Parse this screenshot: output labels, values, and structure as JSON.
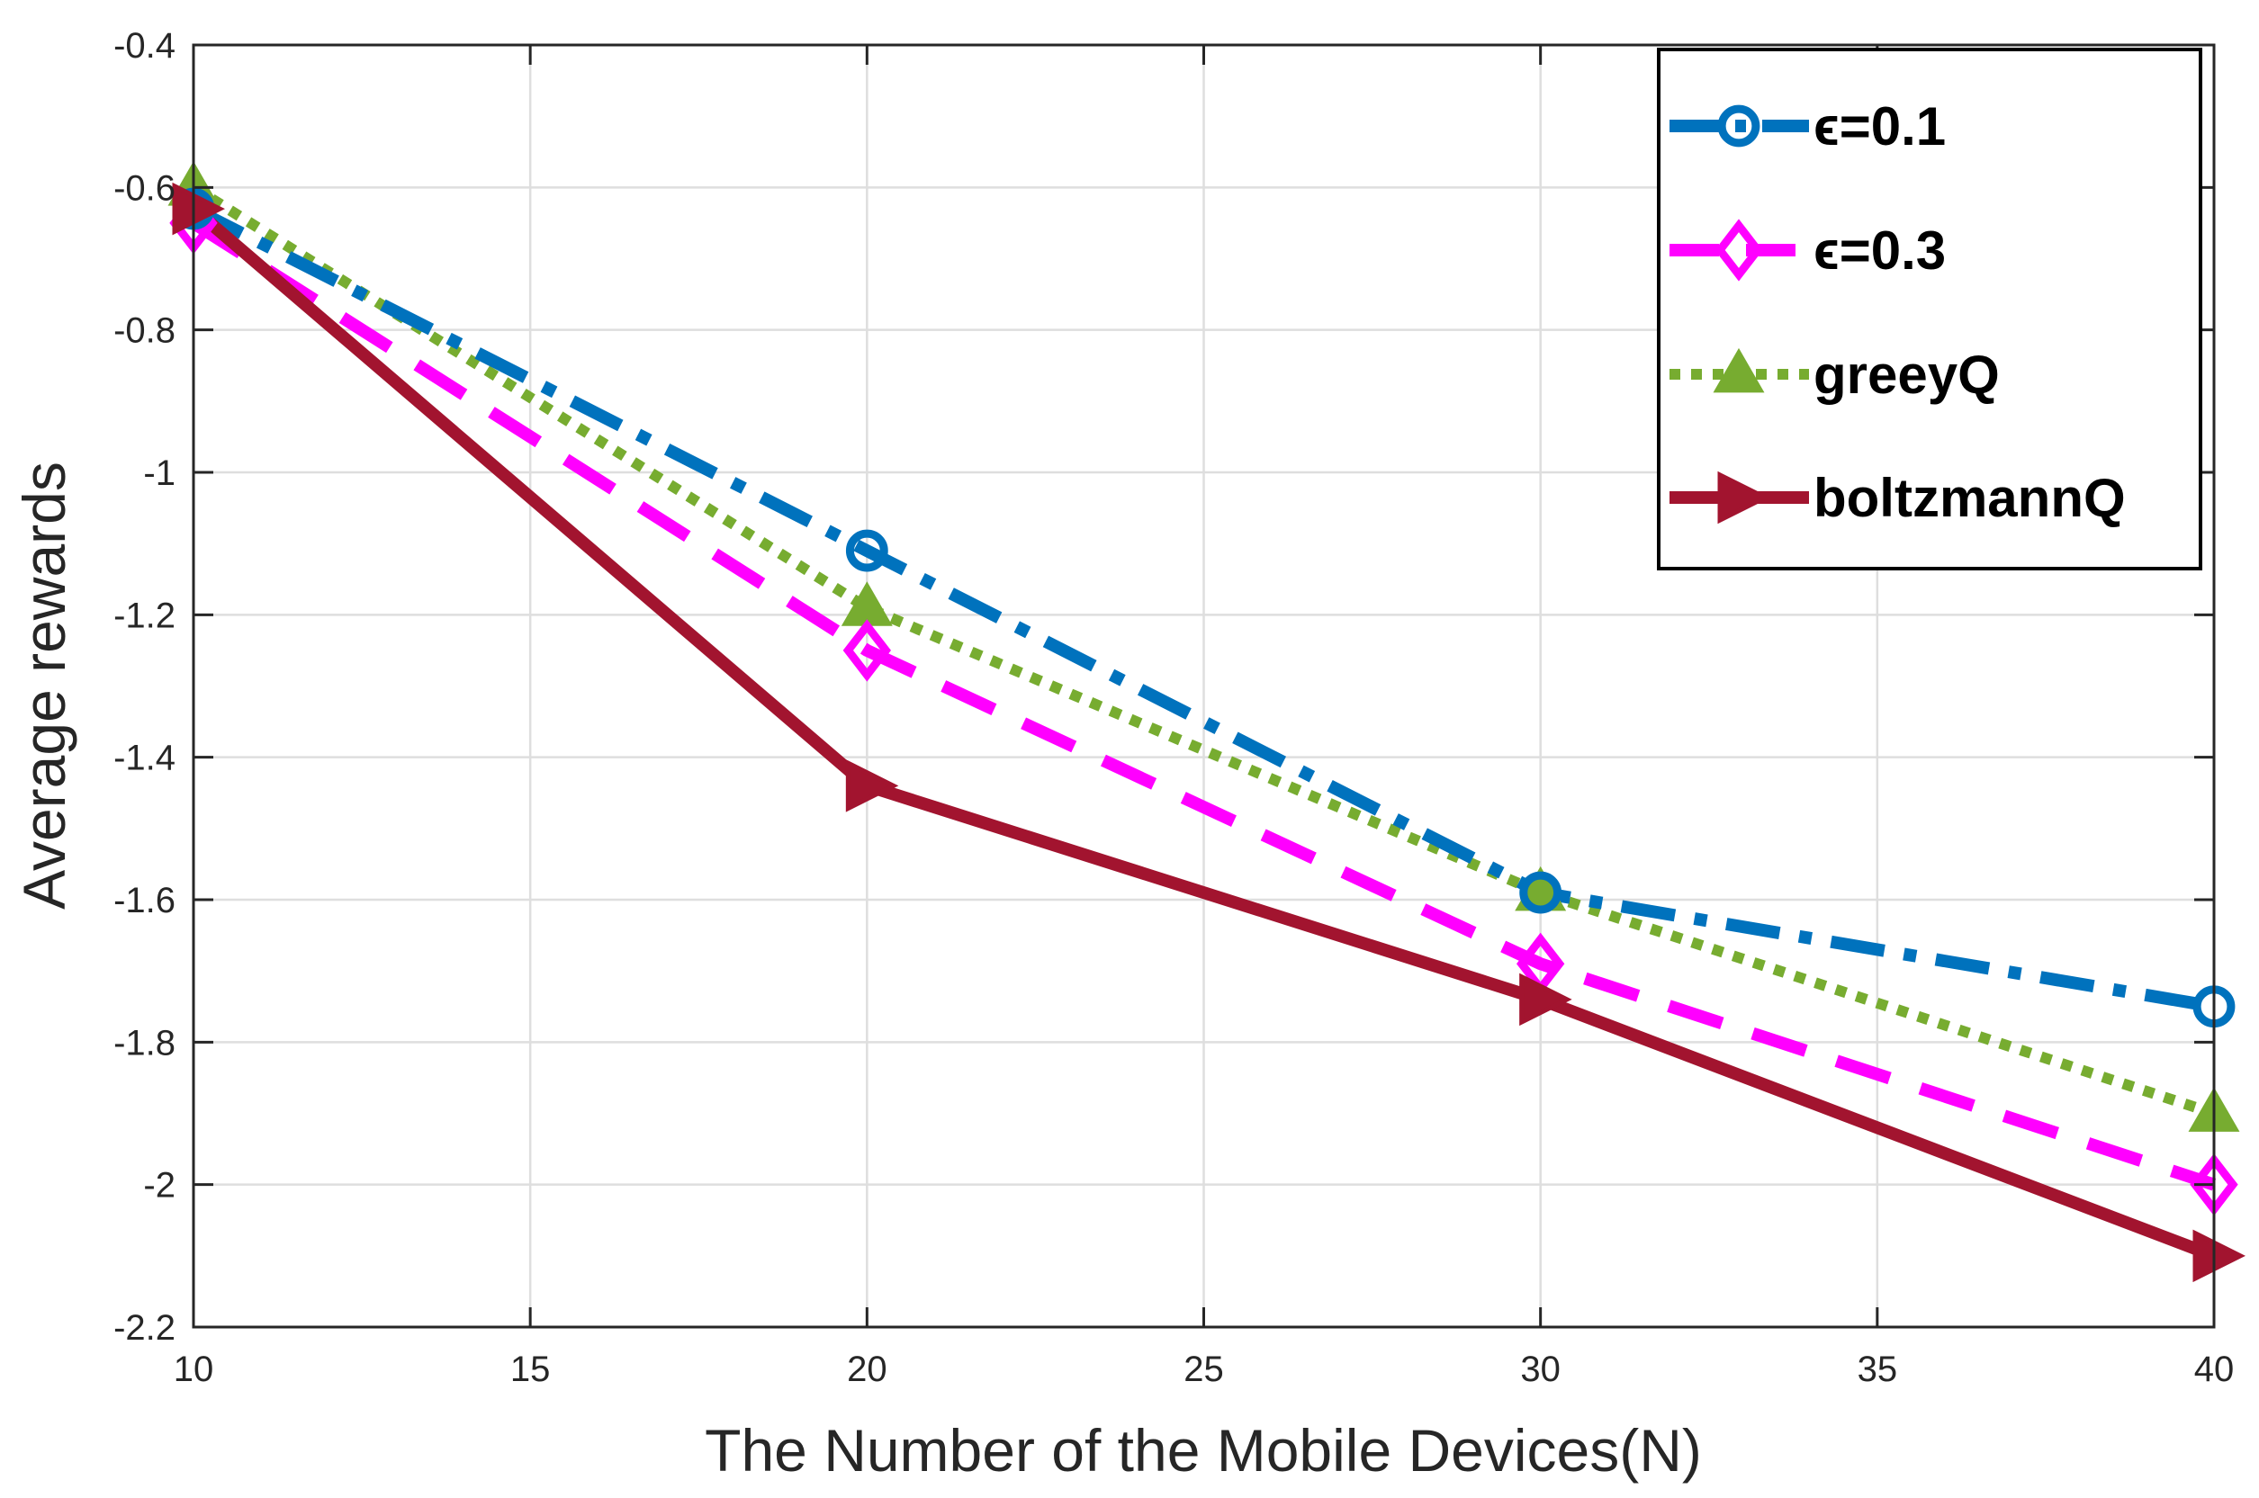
{
  "chart_data": {
    "type": "line",
    "xlabel": "The Number of the Mobile Devices(N)",
    "ylabel": "Average rewards",
    "xlim": [
      10,
      40
    ],
    "ylim": [
      -2.2,
      -0.4
    ],
    "xticks": [
      10,
      15,
      20,
      25,
      30,
      35,
      40
    ],
    "yticks": [
      -0.4,
      -0.6,
      -0.8,
      -1,
      -1.2,
      -1.4,
      -1.6,
      -1.8,
      -2,
      -2.2
    ],
    "grid": true,
    "legend_position": "top-right",
    "x": [
      10,
      20,
      30,
      40
    ],
    "series": [
      {
        "name": "ϵ=0.1",
        "values": [
          -0.63,
          -1.11,
          -1.59,
          -1.75
        ],
        "color": "#0072BD",
        "marker": "circle",
        "line_style": "dash-dot"
      },
      {
        "name": "ϵ=0.3",
        "values": [
          -0.65,
          -1.25,
          -1.69,
          -2.0
        ],
        "color": "#FF00FF",
        "marker": "diamond",
        "line_style": "dashed"
      },
      {
        "name": "greeyQ",
        "values": [
          -0.6,
          -1.19,
          -1.59,
          -1.9
        ],
        "color": "#77AC30",
        "marker": "triangle-up",
        "line_style": "dotted"
      },
      {
        "name": "boltzmannQ",
        "values": [
          -0.63,
          -1.44,
          -1.74,
          -2.1
        ],
        "color": "#A2142F",
        "marker": "triangle-right",
        "line_style": "solid"
      }
    ]
  }
}
